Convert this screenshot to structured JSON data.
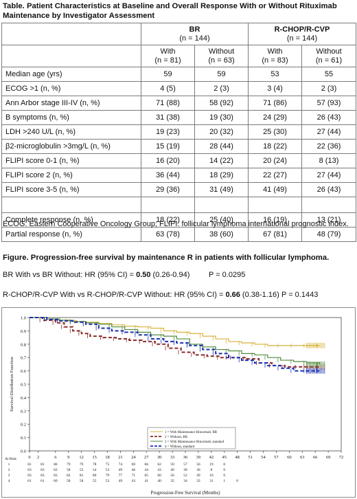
{
  "table": {
    "title": "Table. Patient Characteristics at Baseline and Overall Response With or Without Rituximab Maintenance by Investigator Assessment",
    "groups": [
      {
        "name": "BR",
        "n": "(n = 144)"
      },
      {
        "name": "R-CHOP/R-CVP",
        "n": "(n = 144)"
      }
    ],
    "subcolumns": [
      {
        "label": "With",
        "n": "(n = 81)"
      },
      {
        "label": "Without",
        "n": "(n = 63)"
      },
      {
        "label": "With",
        "n": "(n = 83)"
      },
      {
        "label": "Without",
        "n": "(n = 61)"
      }
    ],
    "rows": [
      {
        "label": "Median age (yrs)",
        "values": [
          "59",
          "59",
          "53",
          "55"
        ]
      },
      {
        "label": "ECOG >1 (n, %)",
        "values": [
          "4 (5)",
          "2 (3)",
          "3 (4)",
          "2 (3)"
        ]
      },
      {
        "label": "Ann Arbor stage III-IV (n, %)",
        "values": [
          "71 (88)",
          "58 (92)",
          "71 (86)",
          "57 (93)"
        ]
      },
      {
        "label": "B symptoms (n, %)",
        "values": [
          "31 (38)",
          "19 (30)",
          "24 (29)",
          "26 (43)"
        ]
      },
      {
        "label": "LDH >240 U/L (n, %)",
        "values": [
          "19 (23)",
          "20 (32)",
          "25 (30)",
          "27 (44)"
        ]
      },
      {
        "label": "β2-microglobulin >3mg/L (n, %)",
        "values": [
          "15 (19)",
          "28 (44)",
          "18 (22)",
          "22 (36)"
        ]
      },
      {
        "label": "FLIPI score 0-1 (n, %)",
        "values": [
          "16 (20)",
          "14 (22)",
          "20 (24)",
          "8 (13)"
        ]
      },
      {
        "label": "FLIPI score 2 (n, %)",
        "values": [
          "36 (44)",
          "18 (29)",
          "22 (27)",
          "27 (44)"
        ]
      },
      {
        "label": "FLIPI score 3-5 (n, %)",
        "values": [
          "29 (36)",
          "31 (49)",
          "41 (49)",
          "26 (43)"
        ]
      }
    ],
    "response_rows": [
      {
        "label": "Complete response (n, %)",
        "values": [
          "18 (22)",
          "25 (40)",
          "16 (19)",
          "13 (21)"
        ]
      },
      {
        "label": "Partial response (n, %)",
        "values": [
          "63 (78)",
          "38 (60)",
          "67 (81)",
          "48 (79)"
        ]
      }
    ],
    "footnote": "ECOG: Eastern Cooperative Oncology Group; FLIPI: follicular lymphoma international prognostic index."
  },
  "figure": {
    "title": "Figure. Progression-free survival by maintenance R in patients with follicular lymphoma.",
    "hr_lines": [
      {
        "prefix": "BR With vs BR Without: HR (95% CI) = ",
        "hr": "0.50",
        "ci": " (0.26-0.94)",
        "p": "P = 0.0295"
      },
      {
        "prefix": "R-CHOP/R-CVP With vs R-CHOP/R-CVP Without: HR (95% CI) = ",
        "hr": "0.66",
        "ci": " (0.38-1.16)",
        "p": "P = 0.1443"
      }
    ]
  },
  "chart_data": {
    "type": "line",
    "title": "",
    "xlabel": "Progression-Free Survival (Months)",
    "ylabel": "Survival Distribution Function",
    "xlim": [
      0,
      72
    ],
    "ylim": [
      0.0,
      1.0
    ],
    "xticks": [
      "0",
      "2",
      "6",
      "9",
      "12",
      "15",
      "18",
      "21",
      "24",
      "27",
      "30",
      "33",
      "36",
      "39",
      "42",
      "45",
      "48",
      "51",
      "54",
      "57",
      "60",
      "63",
      "66",
      "69",
      "72"
    ],
    "yticks": [
      "0.0",
      "0.1",
      "0.2",
      "0.3",
      "0.4",
      "0.5",
      "0.6",
      "0.7",
      "0.8",
      "0.9",
      "1.0"
    ],
    "legend_position": "bottom-center",
    "series": [
      {
        "name": "1 = With Maintenance Rituximab, BR",
        "color": "#d9b23a",
        "dash": "solid",
        "x": [
          0,
          4,
          6,
          9,
          11,
          13,
          16,
          19,
          22,
          25,
          28,
          31,
          34,
          37,
          40,
          43,
          46,
          49,
          52,
          55,
          58,
          61,
          64,
          67
        ],
        "y": [
          1.0,
          0.99,
          0.98,
          0.975,
          0.97,
          0.965,
          0.955,
          0.945,
          0.935,
          0.93,
          0.92,
          0.9,
          0.89,
          0.88,
          0.86,
          0.84,
          0.82,
          0.81,
          0.8,
          0.79,
          0.79,
          0.79,
          0.79,
          0.79
        ]
      },
      {
        "name": "2 = Without, BR",
        "color": "#8a2a2a",
        "dash": "dashed",
        "x": [
          0,
          3,
          6,
          8,
          10,
          12,
          14,
          17,
          20,
          23,
          26,
          29,
          32,
          35,
          38,
          41,
          44,
          47,
          50,
          53,
          56,
          59,
          62,
          64,
          67
        ],
        "y": [
          1.0,
          0.98,
          0.96,
          0.93,
          0.9,
          0.88,
          0.86,
          0.85,
          0.84,
          0.83,
          0.82,
          0.8,
          0.77,
          0.74,
          0.72,
          0.71,
          0.7,
          0.7,
          0.69,
          0.66,
          0.64,
          0.63,
          0.63,
          0.63,
          0.63
        ]
      },
      {
        "name": "3 = With Maintenance Rituximab, standard",
        "color": "#4f8a3c",
        "dash": "solid",
        "x": [
          0,
          4,
          7,
          10,
          13,
          16,
          19,
          22,
          25,
          28,
          31,
          34,
          37,
          40,
          43,
          46,
          49,
          52,
          55,
          58,
          61,
          64,
          67
        ],
        "y": [
          1.0,
          0.99,
          0.98,
          0.97,
          0.96,
          0.95,
          0.93,
          0.91,
          0.89,
          0.87,
          0.86,
          0.84,
          0.8,
          0.78,
          0.76,
          0.75,
          0.73,
          0.72,
          0.7,
          0.68,
          0.67,
          0.66,
          0.65
        ]
      },
      {
        "name": "4 = Without, standard",
        "color": "#1a2fb0",
        "dash": "dashed",
        "x": [
          0,
          4,
          7,
          10,
          13,
          16,
          19,
          22,
          25,
          28,
          31,
          34,
          37,
          40,
          43,
          46,
          49,
          52,
          55,
          58,
          61,
          64,
          67
        ],
        "y": [
          1.0,
          0.985,
          0.975,
          0.965,
          0.95,
          0.92,
          0.9,
          0.89,
          0.87,
          0.84,
          0.82,
          0.81,
          0.79,
          0.76,
          0.73,
          0.7,
          0.68,
          0.66,
          0.64,
          0.62,
          0.6,
          0.6,
          0.6
        ]
      }
    ],
    "at_risk": {
      "label": "At Risk",
      "times": [
        "0",
        "3",
        "6",
        "9",
        "12",
        "15",
        "18",
        "21",
        "24",
        "27",
        "30",
        "33",
        "36",
        "39",
        "42",
        "45",
        "48",
        "51",
        "54",
        "57",
        "60",
        "63",
        "66",
        "69",
        "72"
      ],
      "rows": [
        {
          "id": "1",
          "values": [
            "81",
            "81",
            "80",
            "79",
            "79",
            "78",
            "75",
            "74",
            "69",
            "66",
            "62",
            "59",
            "57",
            "56",
            "19",
            "0"
          ]
        },
        {
          "id": "2",
          "values": [
            "63",
            "63",
            "62",
            "58",
            "55",
            "54",
            "53",
            "49",
            "46",
            "44",
            "43",
            "40",
            "38",
            "36",
            "8",
            "0"
          ]
        },
        {
          "id": "3",
          "values": [
            "83",
            "83",
            "83",
            "82",
            "81",
            "80",
            "79",
            "77",
            "71",
            "65",
            "60",
            "56",
            "52",
            "49",
            "10",
            "0"
          ]
        },
        {
          "id": "4",
          "values": [
            "61",
            "61",
            "60",
            "58",
            "58",
            "55",
            "53",
            "49",
            "43",
            "41",
            "40",
            "35",
            "34",
            "33",
            "31",
            "1",
            "0"
          ]
        }
      ]
    }
  }
}
